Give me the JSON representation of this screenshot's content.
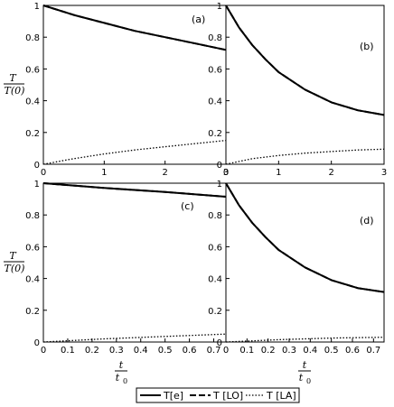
{
  "figure": {
    "ylabel_num": "T",
    "ylabel_den": "T(0)",
    "xlabel_num": "t",
    "xlabel_den": "t",
    "xlabel_den_sub": "0",
    "legend": [
      "T[e]",
      "T [LO]",
      "T [LA]"
    ]
  },
  "chart_data": [
    {
      "type": "line",
      "panel_label": "(a)",
      "xlim": [
        0,
        3
      ],
      "ylim": [
        0,
        1
      ],
      "xticks": [
        "0",
        "1",
        "2",
        "3"
      ],
      "yticks": [
        "0",
        "0.2",
        "0.4",
        "0.6",
        "0.8",
        "1"
      ],
      "series": [
        {
          "name": "T[e]",
          "x": [
            0,
            0.5,
            1,
            1.5,
            2,
            2.5,
            3
          ],
          "y": [
            1.0,
            0.94,
            0.89,
            0.84,
            0.8,
            0.76,
            0.72
          ]
        },
        {
          "name": "T [LO]",
          "x": [
            0,
            0.5,
            1,
            1.5,
            2,
            2.5,
            3
          ],
          "y": [
            1.0,
            0.94,
            0.89,
            0.84,
            0.8,
            0.76,
            0.72
          ]
        },
        {
          "name": "T [LA]",
          "x": [
            0,
            0.5,
            1,
            1.5,
            2,
            2.5,
            3
          ],
          "y": [
            0.0,
            0.035,
            0.065,
            0.09,
            0.11,
            0.13,
            0.15
          ]
        }
      ]
    },
    {
      "type": "line",
      "panel_label": "(b)",
      "xlim": [
        0,
        3
      ],
      "ylim": [
        0,
        1
      ],
      "xticks": [
        "0",
        "1",
        "2",
        "3"
      ],
      "yticks": [
        "0",
        "0.2",
        "0.4",
        "0.6",
        "0.8",
        "1"
      ],
      "series": [
        {
          "name": "T[e]",
          "x": [
            0,
            0.25,
            0.5,
            0.75,
            1,
            1.5,
            2,
            2.5,
            3
          ],
          "y": [
            1.0,
            0.86,
            0.75,
            0.66,
            0.58,
            0.47,
            0.39,
            0.34,
            0.31
          ]
        },
        {
          "name": "T [LO]",
          "x": [
            0,
            0.25,
            0.5,
            0.75,
            1,
            1.5,
            2,
            2.5,
            3
          ],
          "y": [
            1.0,
            0.86,
            0.75,
            0.66,
            0.58,
            0.47,
            0.39,
            0.34,
            0.31
          ]
        },
        {
          "name": "T [LA]",
          "x": [
            0,
            0.5,
            1,
            1.5,
            2,
            2.5,
            3
          ],
          "y": [
            0.0,
            0.035,
            0.055,
            0.07,
            0.08,
            0.09,
            0.095
          ]
        }
      ]
    },
    {
      "type": "line",
      "panel_label": "(c)",
      "xlim": [
        0,
        0.75
      ],
      "ylim": [
        0,
        1
      ],
      "xticks": [
        "0",
        "0.1",
        "0.2",
        "0.3",
        "0.4",
        "0.5",
        "0.6",
        "0.7"
      ],
      "yticks": [
        "0",
        "0.2",
        "0.4",
        "0.6",
        "0.8",
        "1"
      ],
      "series": [
        {
          "name": "T[e]",
          "x": [
            0,
            0.25,
            0.5,
            0.75
          ],
          "y": [
            1.0,
            0.97,
            0.945,
            0.915
          ]
        },
        {
          "name": "T [LO]",
          "x": [
            0,
            0.25,
            0.5,
            0.75
          ],
          "y": [
            1.0,
            0.97,
            0.945,
            0.915
          ]
        },
        {
          "name": "T [LA]",
          "x": [
            0,
            0.25,
            0.5,
            0.75
          ],
          "y": [
            0.0,
            0.02,
            0.035,
            0.05
          ]
        }
      ]
    },
    {
      "type": "line",
      "panel_label": "(d)",
      "xlim": [
        0,
        0.75
      ],
      "ylim": [
        0,
        1
      ],
      "xticks": [
        "0",
        "0.1",
        "0.2",
        "0.3",
        "0.4",
        "0.5",
        "0.6",
        "0.7"
      ],
      "yticks": [
        "0",
        "0.2",
        "0.4",
        "0.6",
        "0.8",
        "1"
      ],
      "series": [
        {
          "name": "T[e]",
          "x": [
            0,
            0.0625,
            0.125,
            0.1875,
            0.25,
            0.375,
            0.5,
            0.625,
            0.75
          ],
          "y": [
            1.0,
            0.86,
            0.75,
            0.66,
            0.58,
            0.47,
            0.39,
            0.34,
            0.315
          ]
        },
        {
          "name": "T [LO]",
          "x": [
            0,
            0.0625,
            0.125,
            0.1875,
            0.25,
            0.375,
            0.5,
            0.625,
            0.75
          ],
          "y": [
            1.0,
            0.86,
            0.75,
            0.66,
            0.58,
            0.47,
            0.39,
            0.34,
            0.315
          ]
        },
        {
          "name": "T [LA]",
          "x": [
            0,
            0.25,
            0.5,
            0.75
          ],
          "y": [
            0.0,
            0.015,
            0.025,
            0.03
          ]
        }
      ]
    }
  ]
}
